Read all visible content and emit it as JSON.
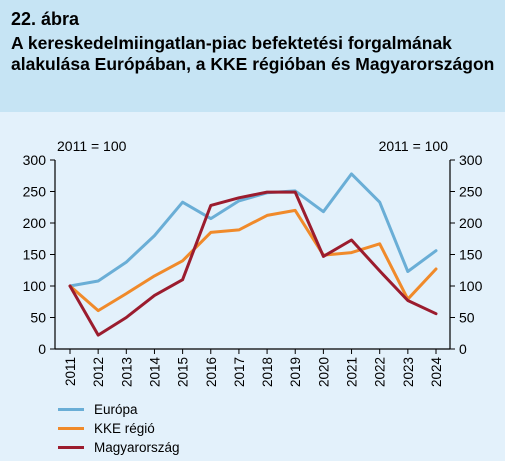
{
  "figure": {
    "number": "22. ábra",
    "title": "A kereskedelmiingatlan-piac befektetési forgalmának alakulása Európában, a KKE régióban és Magyarországon"
  },
  "chart_data": {
    "type": "line",
    "x": [
      "2011",
      "2012",
      "2013",
      "2014",
      "2015",
      "2016",
      "2017",
      "2018",
      "2019",
      "2020",
      "2021",
      "2022",
      "2023",
      "2024"
    ],
    "series": [
      {
        "name": "Európa",
        "color": "#6aaed6",
        "values": [
          100,
          108,
          138,
          180,
          233,
          207,
          235,
          248,
          251,
          218,
          278,
          233,
          123,
          156
        ]
      },
      {
        "name": "KKE régió",
        "color": "#f08a2a",
        "values": [
          100,
          61,
          88,
          116,
          140,
          185,
          189,
          212,
          220,
          149,
          153,
          167,
          79,
          127
        ]
      },
      {
        "name": "Magyarország",
        "color": "#9b1c2e",
        "values": [
          100,
          22,
          50,
          85,
          110,
          228,
          240,
          249,
          249,
          147,
          173,
          124,
          77,
          56
        ]
      }
    ],
    "left_axis_label": "2011 = 100",
    "right_axis_label": "2011 = 100",
    "ylim": [
      0,
      300
    ],
    "yticks": [
      "0",
      "50",
      "100",
      "150",
      "200",
      "250",
      "300"
    ],
    "grid": false,
    "legend_position": "bottom-left"
  }
}
